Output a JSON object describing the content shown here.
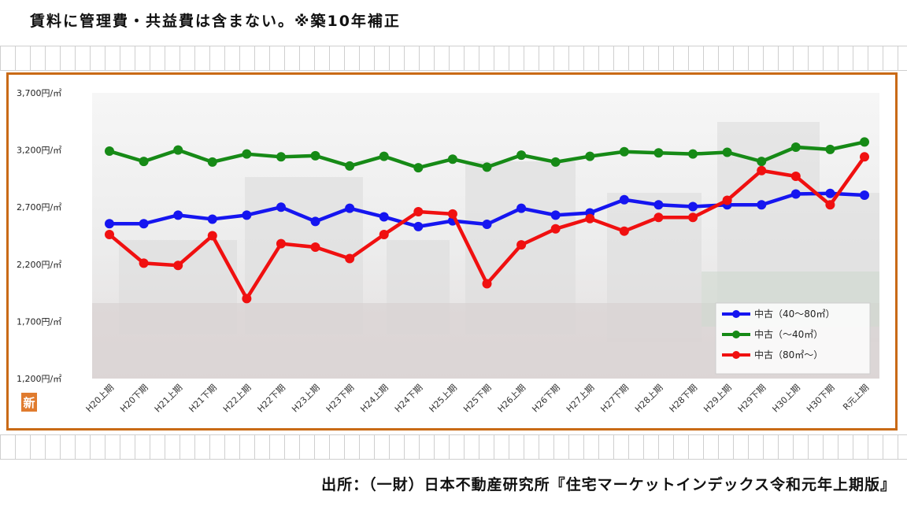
{
  "header": {
    "note": "賃料に管理費・共益費は含まない。※築10年補正"
  },
  "footer": {
    "source": "出所：（一財）日本不動産研究所『住宅マーケットインデックス令和元年上期版』"
  },
  "logo": {
    "text": "新",
    "color": "#e07b2e"
  },
  "chart_data": {
    "type": "line",
    "title": "",
    "xlabel": "",
    "ylabel": "",
    "ylim": [
      1200,
      3700
    ],
    "yticks": [
      1200,
      1700,
      2200,
      2700,
      3200,
      3700
    ],
    "ytick_labels": [
      "1,200円/㎡",
      "1,700円/㎡",
      "2,200円/㎡",
      "2,700円/㎡",
      "3,200円/㎡",
      "3,700円/㎡"
    ],
    "categories": [
      "H20上期",
      "H20下期",
      "H21上期",
      "H21下期",
      "H22上期",
      "H22下期",
      "H23上期",
      "H23下期",
      "H24上期",
      "H24下期",
      "H25上期",
      "H25下期",
      "H26上期",
      "H26下期",
      "H27上期",
      "H27下期",
      "H28上期",
      "H28下期",
      "H29上期",
      "H29下期",
      "H30上期",
      "H30下期",
      "R元上期"
    ],
    "legend_position": "bottom-right",
    "series": [
      {
        "name": "中古（40～80㎡）",
        "color": "#1515f0",
        "values": [
          2555,
          2555,
          2630,
          2595,
          2630,
          2700,
          2575,
          2690,
          2615,
          2530,
          2580,
          2550,
          2690,
          2630,
          2650,
          2765,
          2720,
          2705,
          2720,
          2720,
          2815,
          2820,
          2805
        ]
      },
      {
        "name": "中古（～40㎡）",
        "color": "#168a16",
        "values": [
          3190,
          3100,
          3200,
          3095,
          3165,
          3140,
          3150,
          3060,
          3145,
          3045,
          3120,
          3050,
          3155,
          3095,
          3145,
          3185,
          3175,
          3165,
          3180,
          3100,
          3225,
          3205,
          3270
        ]
      },
      {
        "name": "中古（80㎡～）",
        "color": "#f01010",
        "values": [
          2460,
          2210,
          2190,
          2450,
          1900,
          2380,
          2350,
          2250,
          2460,
          2660,
          2640,
          2030,
          2370,
          2510,
          2600,
          2490,
          2610,
          2610,
          2760,
          3020,
          2970,
          2720,
          3140
        ]
      }
    ]
  }
}
